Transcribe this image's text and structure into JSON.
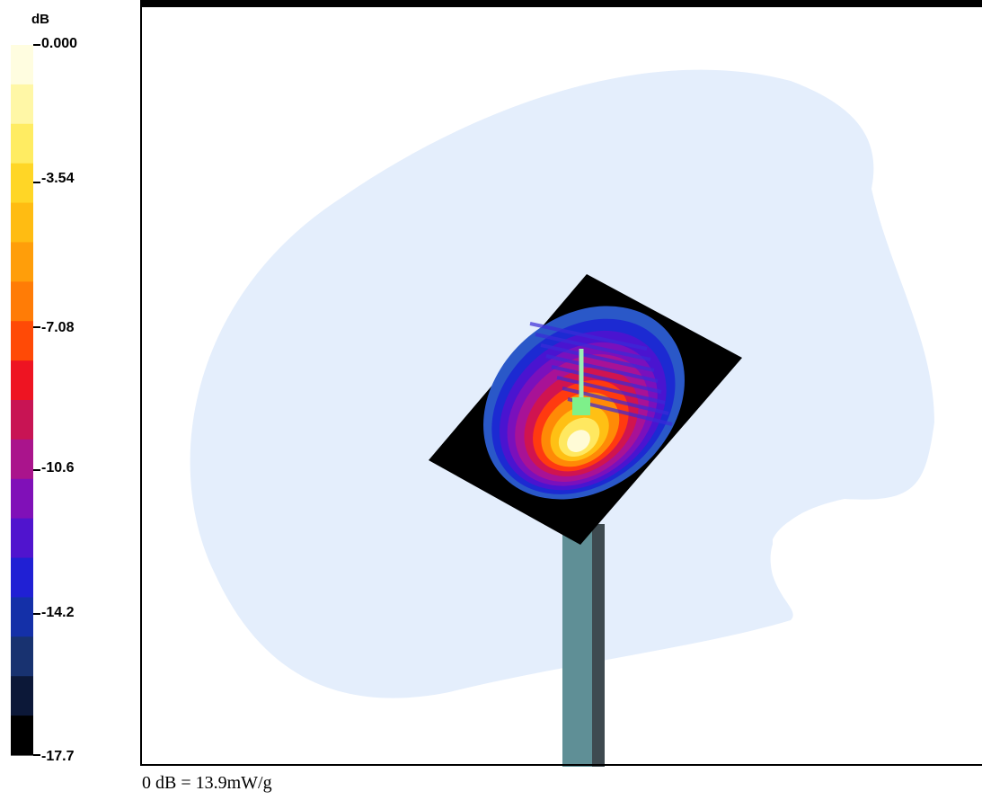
{
  "chart_data": {
    "type": "heatmap",
    "colorbar": {
      "unit": "dB",
      "ticks": [
        "0.000",
        "-3.54",
        "-7.08",
        "-10.6",
        "-14.2",
        "-17.7"
      ],
      "tick_values": [
        0.0,
        -3.54,
        -7.08,
        -10.6,
        -14.2,
        -17.7
      ],
      "range": [
        -17.7,
        0.0
      ],
      "levels": 16,
      "colors": [
        "#fffde0",
        "#fff7a6",
        "#ffec62",
        "#ffd626",
        "#ffbc12",
        "#ff9e0a",
        "#ff7c06",
        "#ff4a06",
        "#ee1422",
        "#c81454",
        "#aa148c",
        "#8010b8",
        "#5014ce",
        "#2020d4",
        "#1430a8",
        "#183270",
        "#0c1838",
        "#000000"
      ]
    },
    "reference": "0 dB = 13.9mW/g"
  }
}
